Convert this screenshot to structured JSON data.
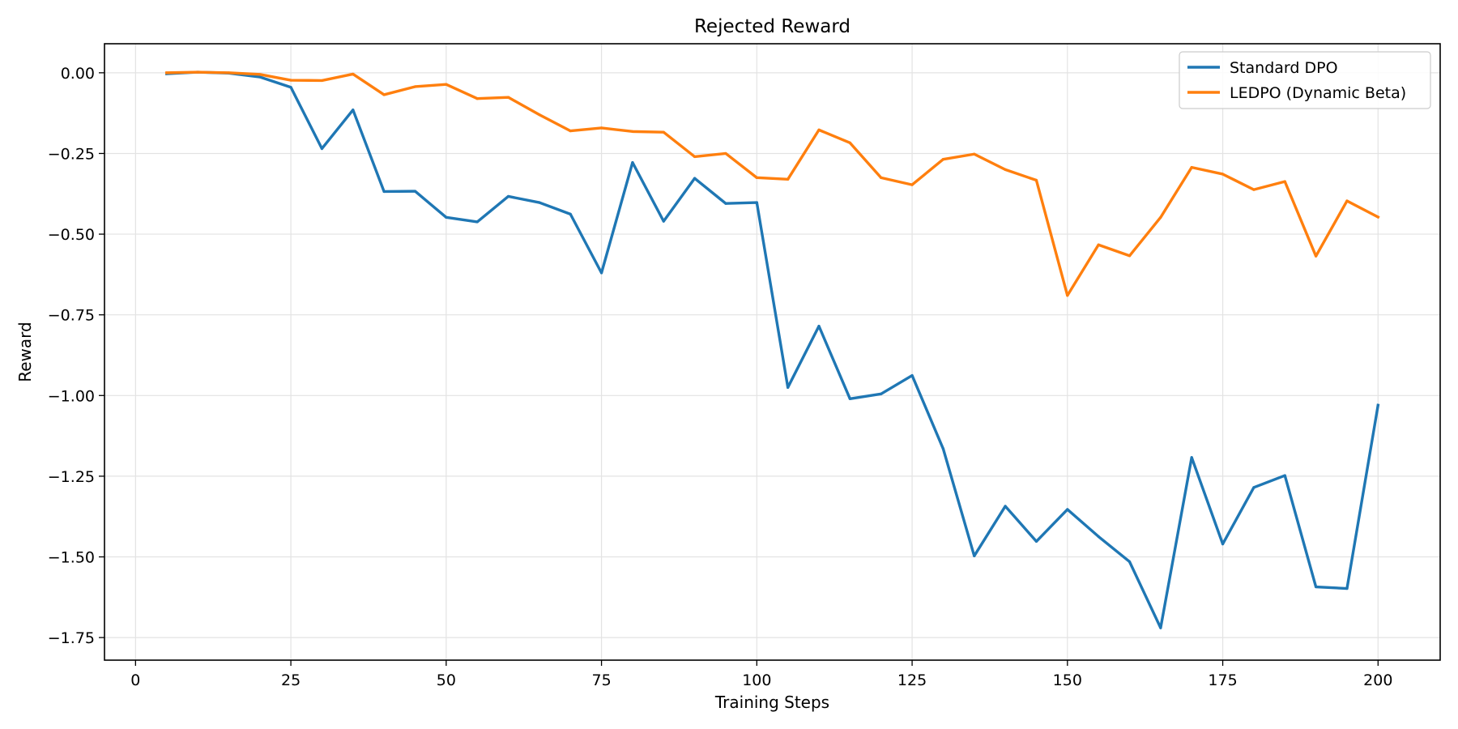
{
  "chart_data": {
    "type": "line",
    "title": "Rejected Reward",
    "xlabel": "Training Steps",
    "ylabel": "Reward",
    "xlim": [
      -5,
      210
    ],
    "ylim": [
      -1.82,
      0.09
    ],
    "xticks": [
      0,
      25,
      50,
      75,
      100,
      125,
      150,
      175,
      200
    ],
    "yticks": [
      0.0,
      -0.25,
      -0.5,
      -0.75,
      -1.0,
      -1.25,
      -1.5,
      -1.75
    ],
    "ytick_labels": [
      "0.00",
      "−0.25",
      "−0.50",
      "−0.75",
      "−1.00",
      "−1.25",
      "−1.50",
      "−1.75"
    ],
    "grid": true,
    "legend_position": "top-right",
    "x": [
      5,
      10,
      15,
      20,
      25,
      30,
      35,
      40,
      45,
      50,
      55,
      60,
      65,
      70,
      75,
      80,
      85,
      90,
      95,
      100,
      105,
      110,
      115,
      120,
      125,
      130,
      135,
      140,
      145,
      150,
      155,
      160,
      165,
      170,
      175,
      180,
      185,
      190,
      195,
      200
    ],
    "series": [
      {
        "name": "Standard DPO",
        "color": "#1f77b4",
        "values": [
          -0.003,
          0.002,
          -0.001,
          -0.013,
          -0.045,
          -0.235,
          -0.115,
          -0.368,
          -0.367,
          -0.448,
          -0.462,
          -0.383,
          -0.402,
          -0.438,
          -0.62,
          -0.278,
          -0.46,
          -0.327,
          -0.405,
          -0.402,
          -0.975,
          -0.785,
          -1.01,
          -0.995,
          -0.938,
          -1.165,
          -1.497,
          -1.343,
          -1.452,
          -1.353,
          -1.437,
          -1.515,
          -1.72,
          -1.192,
          -1.46,
          -1.285,
          -1.248,
          -1.593,
          -1.598,
          -1.03
        ]
      },
      {
        "name": "LEDPO (Dynamic Beta)",
        "color": "#ff7f0e",
        "values": [
          0.0,
          0.002,
          0.0,
          -0.005,
          -0.023,
          -0.024,
          -0.004,
          -0.068,
          -0.043,
          -0.036,
          -0.08,
          -0.076,
          -0.13,
          -0.18,
          -0.171,
          -0.182,
          -0.184,
          -0.26,
          -0.25,
          -0.325,
          -0.33,
          -0.177,
          -0.217,
          -0.325,
          -0.347,
          -0.268,
          -0.252,
          -0.3,
          -0.333,
          -0.69,
          -0.533,
          -0.567,
          -0.448,
          -0.293,
          -0.314,
          -0.362,
          -0.337,
          -0.568,
          -0.397,
          -0.447
        ]
      }
    ]
  }
}
